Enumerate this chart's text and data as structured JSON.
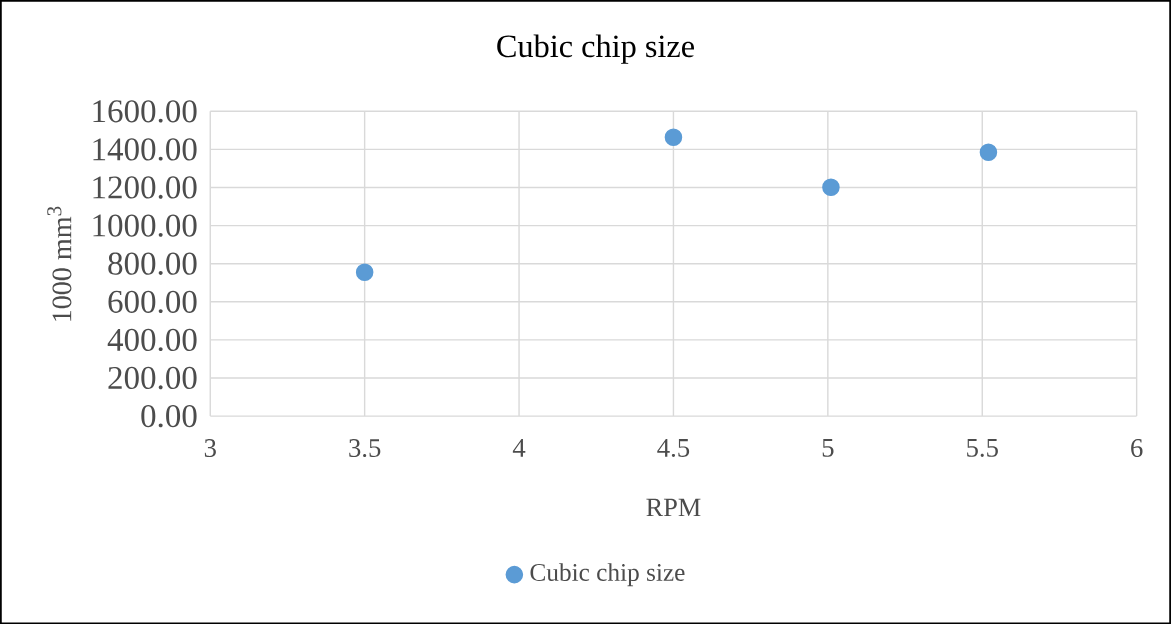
{
  "chart_data": {
    "type": "scatter",
    "title": "Cubic chip size",
    "xlabel": "RPM",
    "ylabel": "1000 mm$^{3}$",
    "series": [
      {
        "name": "Cubic chip size",
        "color": "#5b9bd5",
        "x": [
          3.5,
          4.5,
          5.01,
          5.52
        ],
        "values": [
          755,
          1464,
          1201,
          1385
        ]
      }
    ],
    "xlim": [
      3,
      6
    ],
    "xticks": [
      3,
      3.5,
      4,
      4.5,
      5,
      5.5,
      6
    ],
    "ylim": [
      0,
      1600
    ],
    "yticks": [
      {
        "value": 0,
        "label": "0.00"
      },
      {
        "value": 200,
        "label": "200.00"
      },
      {
        "value": 400,
        "label": "400.00"
      },
      {
        "value": 600,
        "label": "600.00"
      },
      {
        "value": 800,
        "label": "800.00"
      },
      {
        "value": 1000,
        "label": "1000.00"
      },
      {
        "value": 1200,
        "label": "1200.00"
      },
      {
        "value": 1400,
        "label": "1400.00"
      },
      {
        "value": 1600,
        "label": "1600.00"
      }
    ],
    "grid": true,
    "legend": "bottom",
    "marker": "circle"
  }
}
